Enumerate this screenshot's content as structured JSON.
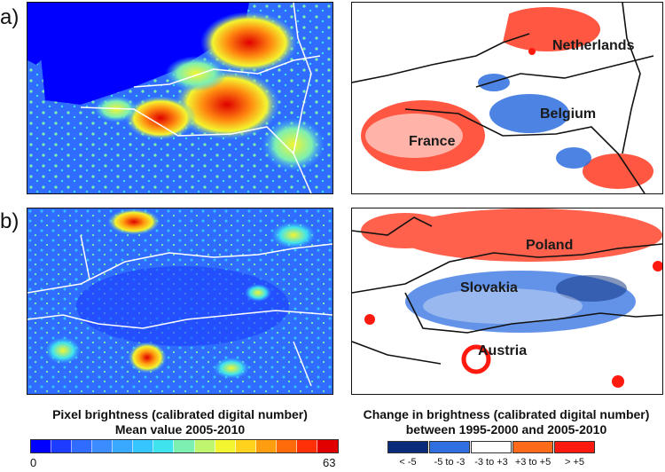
{
  "panel_labels": [
    "a)",
    "b)"
  ],
  "countries": {
    "netherlands": "Netherlands",
    "belgium": "Belgium",
    "france": "France",
    "poland": "Poland",
    "slovakia": "Slovakia",
    "austria": "Austria"
  },
  "legend_brightness": {
    "title_line1": "Pixel brightness (calibrated digital number)",
    "title_line2": "Mean value 2005-2010",
    "min_label": "0",
    "max_label": "63",
    "colors": [
      "#0000ff",
      "#1c3cff",
      "#2f6cff",
      "#3b8cff",
      "#39a9ff",
      "#36c6ff",
      "#3fe3ee",
      "#7df0b1",
      "#bff56f",
      "#f3f530",
      "#ffd21d",
      "#ff9d10",
      "#ff6a0a",
      "#ff3008",
      "#e00000"
    ]
  },
  "legend_change": {
    "title_line1": "Change in brightness (calibrated digital number)",
    "title_line2": "between 1995-2000 and 2005-2010",
    "classes": [
      {
        "label": "< -5",
        "color": "#0a2b7a"
      },
      {
        "label": "-5 to -3",
        "color": "#2f6fe0"
      },
      {
        "label": "-3 to +3",
        "color": "#ffffff"
      },
      {
        "label": "+3 to +5",
        "color": "#ff6a1a"
      },
      {
        "label": "> +5",
        "color": "#ff1a10"
      }
    ]
  }
}
